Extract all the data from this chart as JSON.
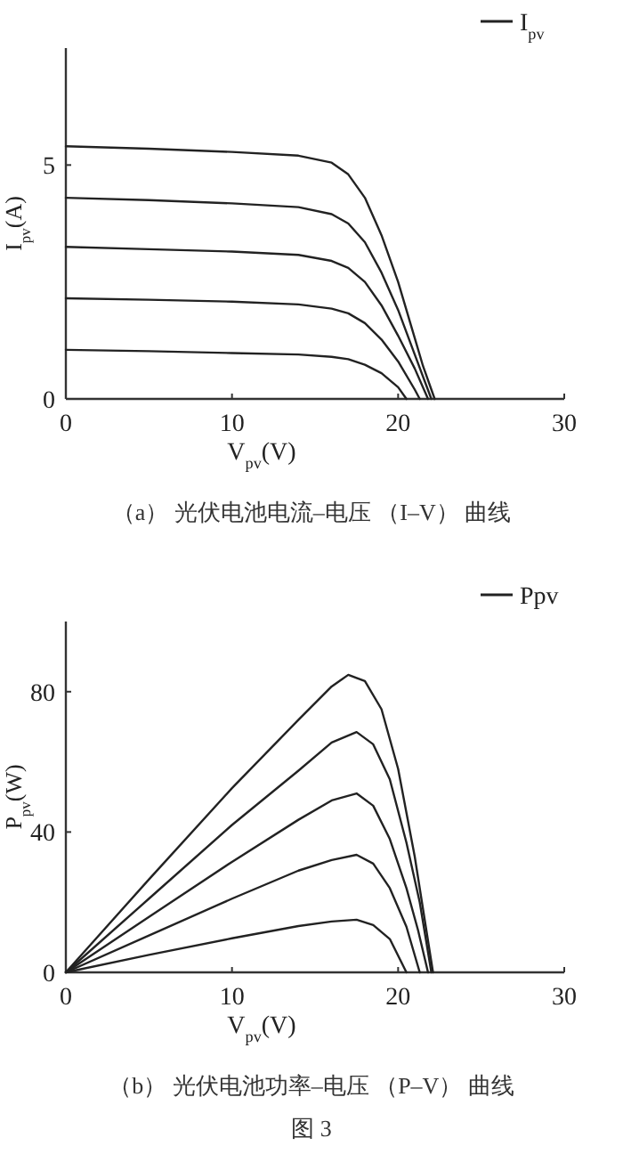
{
  "chart_data": [
    {
      "type": "line",
      "title": "（a） 光伏电池电流–电压 （I–V） 曲线",
      "xlabel": "V$_{pv}$(V)",
      "ylabel": "I$_{pv}$(A)",
      "xlim": [
        0,
        30
      ],
      "ylim": [
        0,
        7.5
      ],
      "xticks": [
        0,
        10,
        20,
        30
      ],
      "yticks": [
        0,
        5
      ],
      "legend": "top right",
      "line_style": "solid",
      "marker": "none",
      "grid": false,
      "series": [
        {
          "name": "I$_{pv}$",
          "color": "#222222",
          "x": [
            0,
            5,
            10,
            14,
            16,
            17,
            18,
            19,
            20,
            21,
            21.5,
            22.2
          ],
          "values": [
            5.4,
            5.35,
            5.28,
            5.2,
            5.05,
            4.8,
            4.3,
            3.5,
            2.5,
            1.3,
            0.7,
            0
          ]
        },
        {
          "color": "#222222",
          "x": [
            0,
            5,
            10,
            14,
            16,
            17,
            18,
            19,
            20,
            21,
            22
          ],
          "values": [
            4.3,
            4.25,
            4.18,
            4.1,
            3.95,
            3.75,
            3.35,
            2.7,
            1.9,
            0.95,
            0
          ]
        },
        {
          "color": "#222222",
          "x": [
            0,
            5,
            10,
            14,
            16,
            17,
            18,
            19,
            20,
            21,
            21.8
          ],
          "values": [
            3.25,
            3.2,
            3.15,
            3.08,
            2.95,
            2.8,
            2.5,
            2.0,
            1.35,
            0.65,
            0
          ]
        },
        {
          "color": "#222222",
          "x": [
            0,
            5,
            10,
            14,
            16,
            17,
            18,
            19,
            20,
            21,
            21.3
          ],
          "values": [
            2.15,
            2.12,
            2.08,
            2.02,
            1.93,
            1.83,
            1.62,
            1.27,
            0.8,
            0.2,
            0
          ]
        },
        {
          "color": "#222222",
          "x": [
            0,
            5,
            10,
            14,
            16,
            17,
            18,
            19,
            20,
            20.5
          ],
          "values": [
            1.05,
            1.02,
            0.98,
            0.95,
            0.9,
            0.85,
            0.73,
            0.55,
            0.25,
            0
          ]
        }
      ]
    },
    {
      "type": "line",
      "title": "（b） 光伏电池功率–电压 （P–V） 曲线",
      "xlabel": "V$_{pv}$(V)",
      "ylabel": "P$_{pv}$(W)",
      "xlim": [
        0,
        30
      ],
      "ylim": [
        0,
        100
      ],
      "xticks": [
        0,
        10,
        20,
        30
      ],
      "yticks": [
        0,
        40,
        80
      ],
      "legend": "top right",
      "line_style": "solid",
      "marker": "none",
      "grid": false,
      "annotations": [
        "图 3"
      ],
      "series": [
        {
          "name": "Ppv",
          "color": "#222222",
          "x": [
            0,
            5,
            10,
            14,
            16,
            17,
            18,
            19,
            20,
            21,
            21.5,
            22.1
          ],
          "values": [
            0,
            26.5,
            52.5,
            72,
            81.5,
            84.8,
            83,
            75,
            58,
            33,
            18,
            0
          ]
        },
        {
          "color": "#222222",
          "x": [
            0,
            5,
            10,
            14,
            16,
            17.5,
            18.5,
            19.5,
            20.5,
            21.3,
            22
          ],
          "values": [
            0,
            21,
            42,
            57.5,
            65.5,
            68.5,
            65,
            55,
            37,
            20,
            0
          ]
        },
        {
          "color": "#222222",
          "x": [
            0,
            5,
            10,
            14,
            16,
            17.5,
            18.5,
            19.5,
            20.5,
            21.2,
            21.8
          ],
          "values": [
            0,
            15.8,
            31.5,
            43.5,
            49,
            51,
            47.5,
            38,
            24,
            12,
            0
          ]
        },
        {
          "color": "#222222",
          "x": [
            0,
            5,
            10,
            14,
            16,
            17.5,
            18.5,
            19.5,
            20.5,
            21.3
          ],
          "values": [
            0,
            10.5,
            21,
            29,
            32,
            33.5,
            31,
            24,
            13,
            0
          ]
        },
        {
          "color": "#222222",
          "x": [
            0,
            5,
            10,
            14,
            16,
            17.5,
            18.5,
            19.5,
            20.5
          ],
          "values": [
            0,
            5,
            9.7,
            13.2,
            14.5,
            15,
            13.5,
            9.5,
            0
          ]
        }
      ]
    }
  ]
}
